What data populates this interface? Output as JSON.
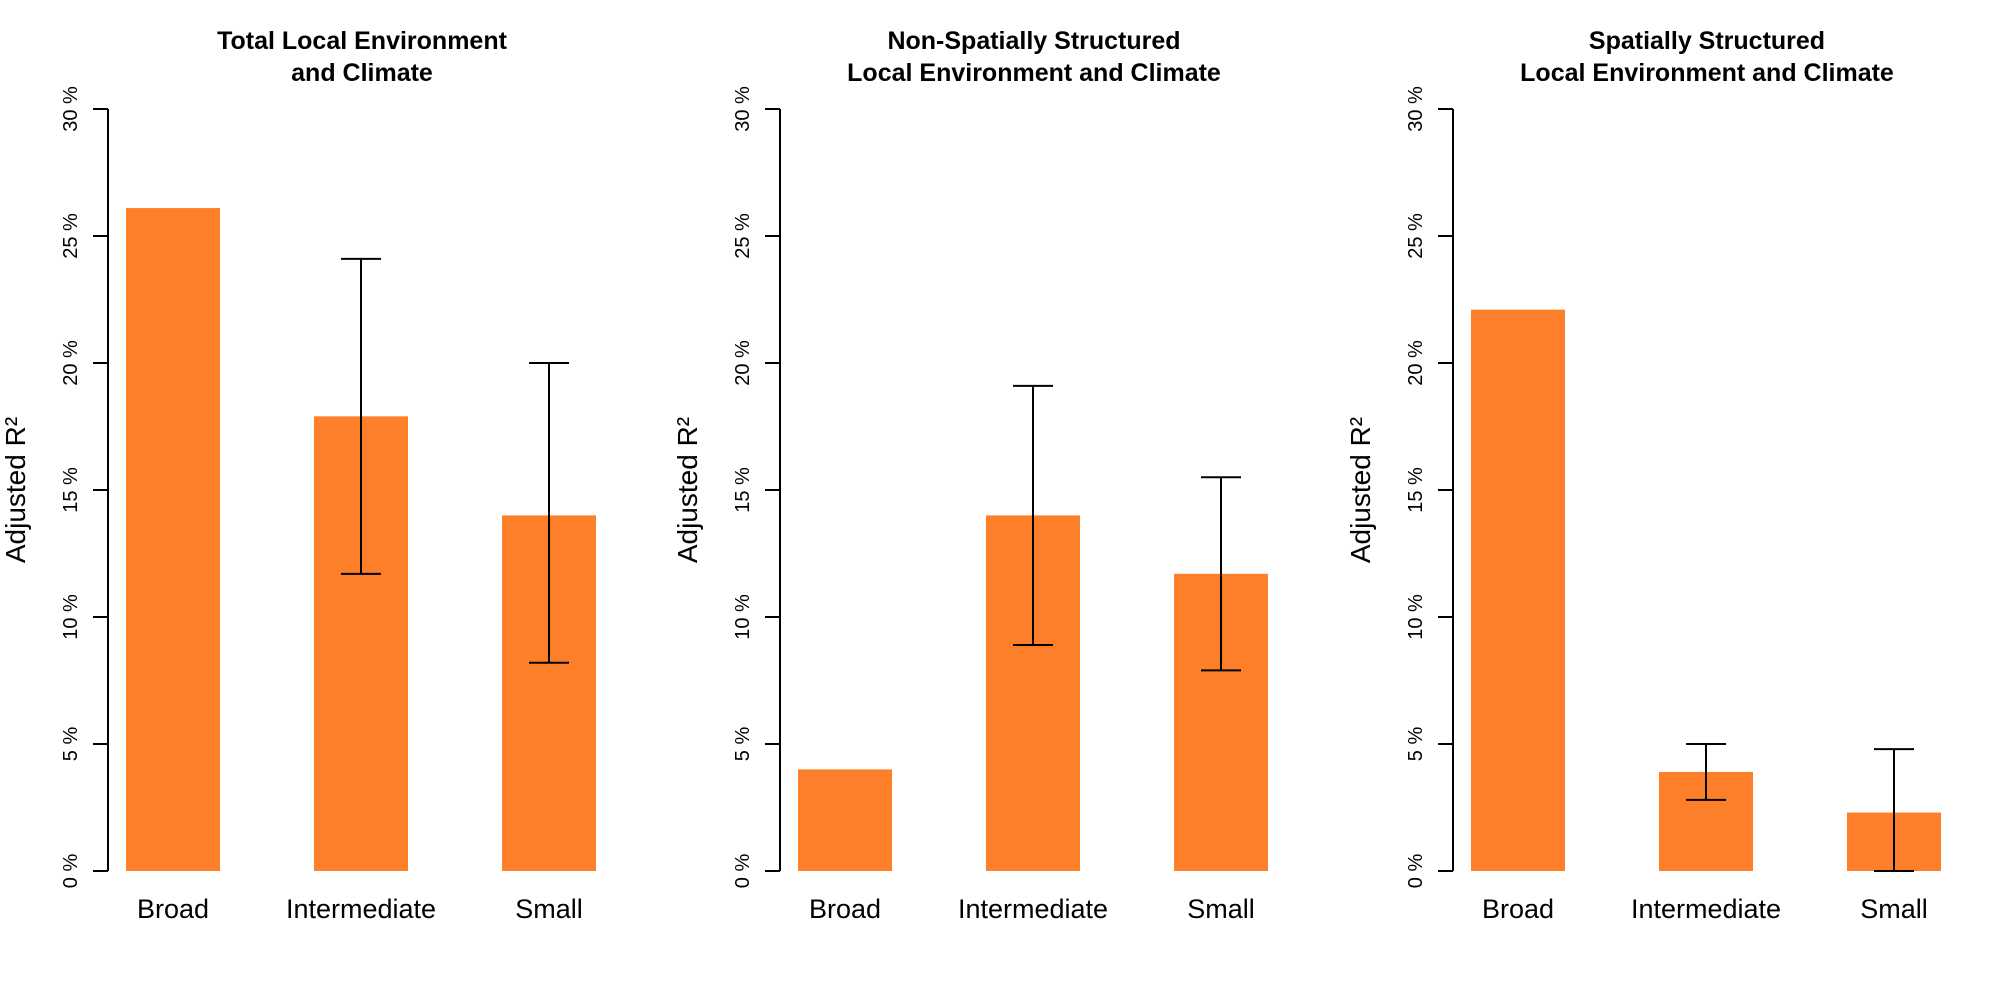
{
  "figure": {
    "bar_color": "#FE7F2A",
    "axis_color": "#000000"
  },
  "chart_data": [
    {
      "type": "bar",
      "title": [
        "Total Local Environment",
        "and Climate"
      ],
      "categories": [
        "Broad",
        "Intermediate",
        "Small"
      ],
      "values": [
        26.1,
        17.9,
        14.0
      ],
      "error_low": [
        null,
        11.7,
        8.2
      ],
      "error_high": [
        null,
        24.1,
        20.0
      ],
      "ylabel": "Adjusted R²",
      "ylim": [
        0,
        30
      ],
      "yticks": [
        0,
        5,
        10,
        15,
        20,
        25,
        30
      ],
      "ytick_labels": [
        "0 %",
        "5 %",
        "10 %",
        "15 %",
        "20 %",
        "25 %",
        "30 %"
      ],
      "grid": false,
      "legend": "none"
    },
    {
      "type": "bar",
      "title": [
        "Non-Spatially Structured",
        "Local Environment and Climate"
      ],
      "categories": [
        "Broad",
        "Intermediate",
        "Small"
      ],
      "values": [
        4.0,
        14.0,
        11.7
      ],
      "error_low": [
        null,
        8.9,
        7.9
      ],
      "error_high": [
        null,
        19.1,
        15.5
      ],
      "ylabel": "Adjusted R²",
      "ylim": [
        0,
        30
      ],
      "yticks": [
        0,
        5,
        10,
        15,
        20,
        25,
        30
      ],
      "ytick_labels": [
        "0 %",
        "5 %",
        "10 %",
        "15 %",
        "20 %",
        "25 %",
        "30 %"
      ],
      "grid": false,
      "legend": "none"
    },
    {
      "type": "bar",
      "title": [
        "Spatially Structured",
        "Local Environment and Climate"
      ],
      "categories": [
        "Broad",
        "Intermediate",
        "Small"
      ],
      "values": [
        22.1,
        3.9,
        2.3
      ],
      "error_low": [
        null,
        2.8,
        0.0
      ],
      "error_high": [
        null,
        5.0,
        4.8
      ],
      "ylabel": "Adjusted R²",
      "ylim": [
        0,
        30
      ],
      "yticks": [
        0,
        5,
        10,
        15,
        20,
        25,
        30
      ],
      "ytick_labels": [
        "0 %",
        "5 %",
        "10 %",
        "15 %",
        "20 %",
        "25 %",
        "30 %"
      ],
      "grid": false,
      "legend": "none"
    }
  ]
}
